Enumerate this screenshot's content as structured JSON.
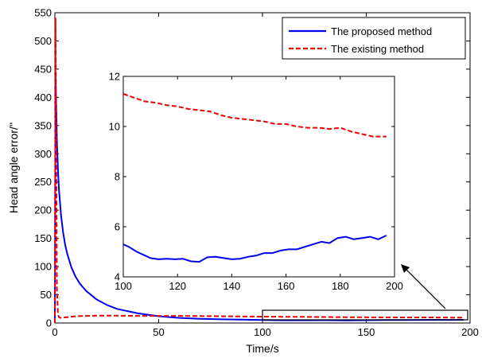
{
  "chart_data": [
    {
      "type": "line",
      "xlabel": "Time/s",
      "ylabel": "Head angle error/''",
      "xlim": [
        0,
        200
      ],
      "ylim": [
        0,
        550
      ],
      "xticks": [
        "0",
        "50",
        "100",
        "150",
        "200"
      ],
      "yticks": [
        "0",
        "50",
        "100",
        "150",
        "200",
        "250",
        "300",
        "350",
        "400",
        "450",
        "500",
        "550"
      ],
      "grid": false,
      "legend_position": "top-right",
      "series": [
        {
          "name": "The proposed method",
          "color": "#0000ee",
          "style": "solid",
          "x": [
            0,
            0.3,
            0.6,
            1,
            1.5,
            2,
            3,
            4,
            5,
            6,
            8,
            10,
            12,
            15,
            20,
            25,
            30,
            40,
            50,
            60,
            70,
            80,
            90,
            100,
            110,
            120,
            130,
            140,
            150,
            160,
            170,
            180,
            190,
            197
          ],
          "y": [
            0,
            440,
            390,
            320,
            270,
            235,
            190,
            160,
            138,
            122,
            98,
            82,
            70,
            57,
            42,
            32,
            25,
            17,
            12,
            9,
            7.5,
            6.5,
            6,
            5.3,
            4.8,
            4.8,
            5,
            4.7,
            5,
            5.2,
            5.3,
            5.5,
            5.5,
            5.6
          ]
        },
        {
          "name": "The existing method",
          "color": "#ee0000",
          "style": "dashed",
          "x": [
            0,
            0.3,
            0.6,
            1,
            1.5,
            2,
            3,
            5,
            10,
            20,
            30,
            40,
            50,
            60,
            70,
            80,
            90,
            100,
            110,
            120,
            130,
            140,
            150,
            160,
            170,
            180,
            190,
            197
          ],
          "y": [
            0,
            540,
            330,
            60,
            15,
            10,
            9,
            10,
            12,
            13,
            13,
            12.5,
            12.5,
            12.5,
            12.2,
            12,
            11.6,
            11.3,
            11,
            10.8,
            10.6,
            10.3,
            10.2,
            10,
            9.9,
            9.9,
            9.6,
            9.6
          ]
        }
      ]
    },
    {
      "type": "line",
      "inset": true,
      "xlim": [
        100,
        200
      ],
      "ylim": [
        4,
        12
      ],
      "xticks": [
        "100",
        "120",
        "140",
        "160",
        "180",
        "200"
      ],
      "yticks": [
        "4",
        "6",
        "8",
        "10",
        "12"
      ],
      "grid": false,
      "series": [
        {
          "name": "The proposed method",
          "color": "#0000ee",
          "style": "solid",
          "x": [
            100,
            102,
            105,
            108,
            110,
            113,
            116,
            119,
            122,
            125,
            128,
            131,
            134,
            137,
            140,
            143,
            146,
            149,
            152,
            155,
            158,
            161,
            164,
            167,
            170,
            173,
            176,
            179,
            182,
            185,
            188,
            191,
            194,
            197
          ],
          "y": [
            5.3,
            5.2,
            5.0,
            4.85,
            4.75,
            4.7,
            4.72,
            4.7,
            4.72,
            4.62,
            4.6,
            4.78,
            4.8,
            4.75,
            4.7,
            4.72,
            4.8,
            4.85,
            4.95,
            4.95,
            5.05,
            5.1,
            5.1,
            5.2,
            5.3,
            5.4,
            5.35,
            5.55,
            5.6,
            5.5,
            5.55,
            5.6,
            5.5,
            5.65
          ]
        },
        {
          "name": "The existing method",
          "color": "#ee0000",
          "style": "dashed",
          "x": [
            100,
            104,
            108,
            112,
            116,
            120,
            124,
            128,
            132,
            136,
            140,
            144,
            148,
            152,
            156,
            160,
            164,
            168,
            172,
            176,
            180,
            184,
            188,
            192,
            197
          ],
          "y": [
            11.3,
            11.15,
            11.0,
            10.95,
            10.85,
            10.8,
            10.7,
            10.65,
            10.6,
            10.45,
            10.35,
            10.3,
            10.25,
            10.2,
            10.1,
            10.1,
            10.0,
            9.95,
            9.95,
            9.9,
            9.95,
            9.8,
            9.7,
            9.6,
            9.6
          ]
        }
      ]
    }
  ]
}
